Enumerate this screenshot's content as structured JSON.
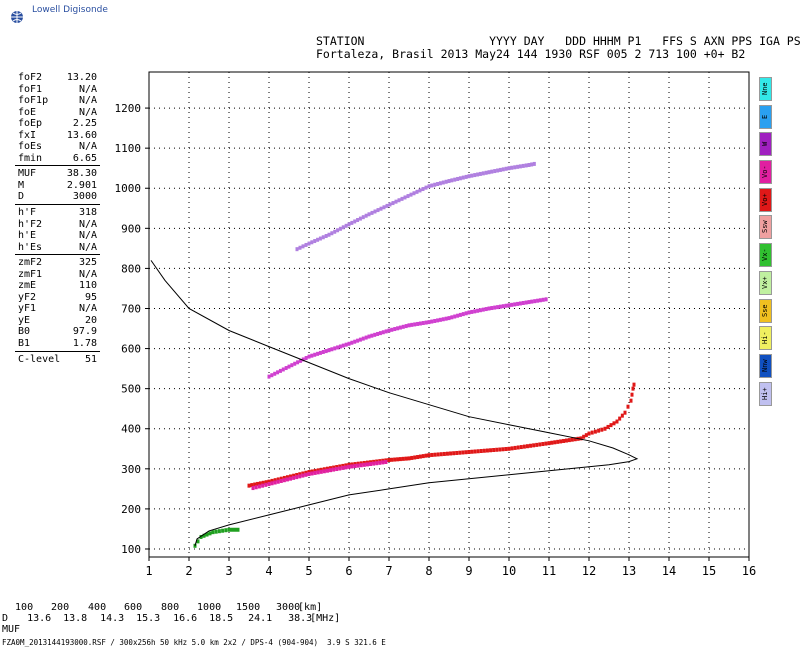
{
  "logo": {
    "text": "Lowell Digisonde",
    "icon": "globe-icon"
  },
  "header": {
    "line1": "STATION                  YYYY DAY   DDD HHHM P1   FFS S AXN PPS IGA PS",
    "line2": "Fortaleza, Brasil 2013 May24 144 1930 RSF 005 2 713 100 +0+ B2"
  },
  "params": {
    "group1": [
      {
        "label": "foF2",
        "value": "13.20"
      },
      {
        "label": "foF1",
        "value": "N/A"
      },
      {
        "label": "foF1p",
        "value": "N/A"
      },
      {
        "label": "foE",
        "value": "N/A"
      },
      {
        "label": "foEp",
        "value": "2.25"
      },
      {
        "label": "fxI",
        "value": "13.60"
      },
      {
        "label": "foEs",
        "value": "N/A"
      },
      {
        "label": "fmin",
        "value": "6.65"
      }
    ],
    "group2": [
      {
        "label": "MUF",
        "value": "38.30"
      },
      {
        "label": "M",
        "value": "2.901"
      },
      {
        "label": "D",
        "value": "3000"
      }
    ],
    "group3": [
      {
        "label": "h'F",
        "value": "318"
      },
      {
        "label": "h'F2",
        "value": "N/A"
      },
      {
        "label": "h'E",
        "value": "N/A"
      },
      {
        "label": "h'Es",
        "value": "N/A"
      }
    ],
    "group4": [
      {
        "label": "zmF2",
        "value": "325"
      },
      {
        "label": "zmF1",
        "value": "N/A"
      },
      {
        "label": "zmE",
        "value": "110"
      },
      {
        "label": "yF2",
        "value": "95"
      },
      {
        "label": "yF1",
        "value": "N/A"
      },
      {
        "label": "yE",
        "value": "20"
      },
      {
        "label": "B0",
        "value": "97.9"
      },
      {
        "label": "B1",
        "value": "1.78"
      }
    ],
    "group5": [
      {
        "label": "C-level",
        "value": "51"
      }
    ]
  },
  "legend": [
    {
      "label": "Nne",
      "color": "#33e8e8"
    },
    {
      "label": "E",
      "color": "#2aa0f0"
    },
    {
      "label": "W",
      "color": "#a020c0"
    },
    {
      "label": "Vo-",
      "color": "#e020a0"
    },
    {
      "label": "Vo+",
      "color": "#e01818"
    },
    {
      "label": "Ssw",
      "color": "#f0a0a0"
    },
    {
      "label": "Vx-",
      "color": "#30c030"
    },
    {
      "label": "Vx+",
      "color": "#c0f0a0"
    },
    {
      "label": "Sse",
      "color": "#f0c020"
    },
    {
      "label": "Hi-",
      "color": "#f0f060"
    },
    {
      "label": "Nnw",
      "color": "#1050c0"
    },
    {
      "label": "Hi+",
      "color": "#c0c0f0"
    }
  ],
  "chart_data": {
    "type": "scatter",
    "title": "",
    "xlabel": "",
    "ylabel": "",
    "xlim": [
      1,
      16
    ],
    "ylim": [
      80,
      1290
    ],
    "xticks": [
      "1",
      "2",
      "3",
      "4",
      "5",
      "6",
      "7",
      "8",
      "9",
      "10",
      "11",
      "12",
      "13",
      "14",
      "15",
      "16"
    ],
    "yticks": [
      "100",
      "200",
      "300",
      "400",
      "500",
      "600",
      "700",
      "800",
      "900",
      "1000",
      "1100",
      "1200"
    ],
    "grid": true,
    "profile_curve": {
      "name": "",
      "points": [
        [
          1.05,
          820
        ],
        [
          1.4,
          770
        ],
        [
          2,
          700
        ],
        [
          3,
          645
        ],
        [
          4,
          605
        ],
        [
          5,
          565
        ],
        [
          6,
          525
        ],
        [
          7,
          490
        ],
        [
          8,
          460
        ],
        [
          9,
          430
        ],
        [
          10,
          410
        ],
        [
          11,
          390
        ],
        [
          12,
          370
        ],
        [
          12.6,
          352
        ],
        [
          13,
          335
        ],
        [
          13.2,
          325
        ],
        [
          13,
          318
        ],
        [
          12.5,
          310
        ],
        [
          12,
          305
        ],
        [
          11,
          295
        ],
        [
          10,
          285
        ],
        [
          9,
          275
        ],
        [
          8,
          265
        ],
        [
          7,
          250
        ],
        [
          6,
          235
        ],
        [
          5,
          210
        ],
        [
          4,
          185
        ],
        [
          3,
          160
        ],
        [
          2.5,
          145
        ],
        [
          2.2,
          125
        ],
        [
          2.15,
          108
        ]
      ]
    },
    "traces": [
      {
        "name": "F2 O-trace",
        "color": "#e01818",
        "points": [
          [
            3.5,
            258
          ],
          [
            4,
            268
          ],
          [
            5,
            292
          ],
          [
            6,
            310
          ],
          [
            7,
            322
          ],
          [
            7.5,
            326
          ],
          [
            8,
            334
          ],
          [
            9,
            342
          ],
          [
            10,
            350
          ],
          [
            11,
            364
          ],
          [
            11.8,
            376
          ],
          [
            12,
            388
          ],
          [
            12.4,
            400
          ],
          [
            12.7,
            418
          ],
          [
            12.9,
            440
          ],
          [
            13.05,
            470
          ],
          [
            13.1,
            500
          ],
          [
            13.15,
            520
          ]
        ]
      },
      {
        "name": "F2 trace (magenta)",
        "color": "#e020a0",
        "points": [
          [
            3.6,
            252
          ],
          [
            4,
            262
          ],
          [
            5,
            287
          ],
          [
            6,
            305
          ],
          [
            7,
            318
          ]
        ]
      },
      {
        "name": "2F echo",
        "color": "#d040d0",
        "points": [
          [
            4,
            530
          ],
          [
            4.5,
            555
          ],
          [
            5,
            580
          ],
          [
            5.5,
            596
          ],
          [
            6,
            612
          ],
          [
            6.5,
            630
          ],
          [
            7,
            645
          ],
          [
            7.5,
            658
          ],
          [
            8,
            666
          ],
          [
            8.5,
            676
          ],
          [
            9,
            690
          ],
          [
            9.5,
            700
          ],
          [
            10,
            708
          ],
          [
            10.5,
            716
          ],
          [
            11,
            724
          ]
        ]
      },
      {
        "name": "3F echo",
        "color": "#b080e0",
        "points": [
          [
            4.7,
            848
          ],
          [
            5,
            862
          ],
          [
            5.5,
            884
          ],
          [
            6,
            910
          ],
          [
            6.5,
            935
          ],
          [
            8,
            1005
          ],
          [
            8.5,
            1018
          ],
          [
            9,
            1030
          ],
          [
            9.5,
            1040
          ],
          [
            10,
            1050
          ],
          [
            10.5,
            1058
          ],
          [
            10.7,
            1062
          ]
        ]
      },
      {
        "name": "E trace",
        "color": "#20a020",
        "points": [
          [
            2.15,
            108
          ],
          [
            2.3,
            130
          ],
          [
            2.6,
            142
          ],
          [
            3,
            148
          ],
          [
            3.3,
            148
          ]
        ]
      }
    ]
  },
  "muf_table": {
    "d_label": "D",
    "muf_label": "MUF",
    "d_values": [
      "100",
      "200",
      "400",
      "600",
      "800",
      "1000",
      "1500",
      "3000"
    ],
    "muf_values": [
      "13.6",
      "13.8",
      "14.3",
      "15.3",
      "16.6",
      "18.5",
      "24.1",
      "38.3"
    ],
    "d_unit": "[km]",
    "muf_unit": "[MHz]"
  },
  "footer": "FZA0M_2013144193000.RSF / 300x256h 50 kHz 5.0 km 2x2 / DPS-4 (904-904)  3.9 S 321.6 E"
}
